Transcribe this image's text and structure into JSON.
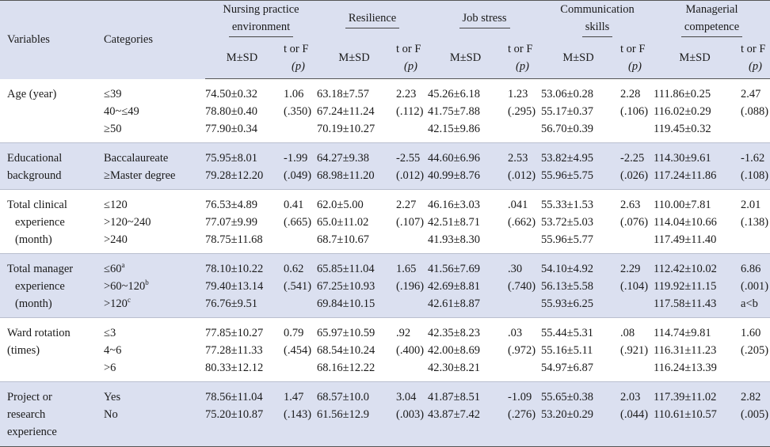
{
  "header": {
    "variables": "Variables",
    "categories": "Categories",
    "groups": [
      {
        "line1": "Nursing practice",
        "line2": "environment"
      },
      {
        "line1": "Resilience",
        "line2": ""
      },
      {
        "line1": "Job stress",
        "line2": ""
      },
      {
        "line1": "Communication",
        "line2": "skills"
      },
      {
        "line1": "Managerial",
        "line2": "competence"
      }
    ],
    "ms_label": "M±SD",
    "stat_label_1": "t or F",
    "stat_label_2": "(p)"
  },
  "rows": [
    {
      "variable": [
        "Age (year)"
      ],
      "categories": [
        "≤39",
        "40~≤49",
        "≥50"
      ],
      "measures": [
        {
          "ms": [
            "74.50±0.32",
            "78.80±0.40",
            "77.90±0.34"
          ],
          "stat": [
            "1.06",
            "(.350)"
          ]
        },
        {
          "ms": [
            "63.18±7.57",
            "67.24±11.24",
            "70.19±10.27"
          ],
          "stat": [
            "2.23",
            "(.112)"
          ]
        },
        {
          "ms": [
            "45.26±6.18",
            "41.75±7.88",
            "42.15±9.86"
          ],
          "stat": [
            "1.23",
            "(.295)"
          ]
        },
        {
          "ms": [
            "53.06±0.28",
            "55.17±0.37",
            "56.70±0.39"
          ],
          "stat": [
            "2.28",
            "(.106)"
          ]
        },
        {
          "ms": [
            "111.86±0.25",
            "116.02±0.29",
            "119.45±0.32"
          ],
          "stat": [
            "2.47",
            "(.088)"
          ]
        }
      ]
    },
    {
      "variable": [
        "Educational",
        "background"
      ],
      "categories": [
        "Baccalaureate",
        "≥Master degree"
      ],
      "measures": [
        {
          "ms": [
            "75.95±8.01",
            "79.28±12.20"
          ],
          "stat": [
            "-1.99",
            "(.049)"
          ]
        },
        {
          "ms": [
            "64.27±9.38",
            "68.98±11.20"
          ],
          "stat": [
            "-2.55",
            "(.012)"
          ]
        },
        {
          "ms": [
            "44.60±6.96",
            "40.99±8.76"
          ],
          "stat": [
            "2.53",
            "(.012)"
          ]
        },
        {
          "ms": [
            "53.82±4.95",
            "55.96±5.75"
          ],
          "stat": [
            "-2.25",
            "(.026)"
          ]
        },
        {
          "ms": [
            "114.30±9.61",
            "117.24±11.86"
          ],
          "stat": [
            "-1.62",
            "(.108)"
          ]
        }
      ]
    },
    {
      "variable": [
        "Total clinical",
        "experience",
        "(month)"
      ],
      "categories": [
        "≤120",
        ">120~240",
        ">240"
      ],
      "measures": [
        {
          "ms": [
            "76.53±4.89",
            "77.07±9.99",
            "78.75±11.68"
          ],
          "stat": [
            "0.41",
            "(.665)"
          ]
        },
        {
          "ms": [
            "62.0±5.00",
            "65.0±11.02",
            "68.7±10.67"
          ],
          "stat": [
            "2.27",
            "(.107)"
          ]
        },
        {
          "ms": [
            "46.16±3.03",
            "42.51±8.71",
            "41.93±8.30"
          ],
          "stat": [
            ".041",
            "(.662)"
          ]
        },
        {
          "ms": [
            "55.33±1.53",
            "53.72±5.03",
            "55.96±5.77"
          ],
          "stat": [
            "2.63",
            "(.076)"
          ]
        },
        {
          "ms": [
            "110.00±7.81",
            "114.04±10.66",
            "117.49±11.40"
          ],
          "stat": [
            "2.01",
            "(.138)"
          ]
        }
      ]
    },
    {
      "variable": [
        "Total manager",
        "experience",
        "(month)"
      ],
      "categories": [
        "≤60",
        ">60~120",
        ">120"
      ],
      "category_sups": [
        "a",
        "b",
        "c"
      ],
      "measures": [
        {
          "ms": [
            "78.10±10.22",
            "79.40±13.14",
            "76.76±9.51"
          ],
          "stat": [
            "0.62",
            "(.541)"
          ]
        },
        {
          "ms": [
            "65.85±11.04",
            "67.25±10.93",
            "69.84±10.15"
          ],
          "stat": [
            "1.65",
            "(.196)"
          ]
        },
        {
          "ms": [
            "41.56±7.69",
            "42.69±8.81",
            "42.61±8.87"
          ],
          "stat": [
            ".30",
            "(.740)"
          ]
        },
        {
          "ms": [
            "54.10±4.92",
            "56.13±5.58",
            "55.93±6.25"
          ],
          "stat": [
            "2.29",
            "(.104)"
          ]
        },
        {
          "ms": [
            "112.42±10.02",
            "119.92±11.15",
            "117.58±11.43"
          ],
          "stat": [
            "6.86",
            "(.001)",
            "a<b"
          ]
        }
      ]
    },
    {
      "variable": [
        "Ward rotation",
        "(times)"
      ],
      "categories": [
        "≤3",
        "4~6",
        ">6"
      ],
      "measures": [
        {
          "ms": [
            "77.85±10.27",
            "77.28±11.33",
            "80.33±12.12"
          ],
          "stat": [
            "0.79",
            "(.454)"
          ]
        },
        {
          "ms": [
            "65.97±10.59",
            "68.54±10.24",
            "68.16±12.22"
          ],
          "stat": [
            ".92",
            "(.400)"
          ]
        },
        {
          "ms": [
            "42.35±8.23",
            "42.00±8.69",
            "42.30±8.21"
          ],
          "stat": [
            ".03",
            "(.972)"
          ]
        },
        {
          "ms": [
            "55.44±5.31",
            "55.16±5.11",
            "54.97±6.87"
          ],
          "stat": [
            ".08",
            "(.921)"
          ]
        },
        {
          "ms": [
            "114.74±9.81",
            "116.31±11.23",
            "116.24±13.39"
          ],
          "stat": [
            "1.60",
            "(.205)"
          ]
        }
      ]
    },
    {
      "variable": [
        "Project or",
        "research",
        "experience"
      ],
      "categories": [
        "Yes",
        "No"
      ],
      "measures": [
        {
          "ms": [
            "78.56±11.04",
            "75.20±10.87"
          ],
          "stat": [
            "1.47",
            "(.143)"
          ]
        },
        {
          "ms": [
            "68.57±10.0",
            "61.56±12.9"
          ],
          "stat": [
            "3.04",
            "(.003)"
          ]
        },
        {
          "ms": [
            "41.87±8.51",
            "43.87±7.42"
          ],
          "stat": [
            "-1.09",
            "(.276)"
          ]
        },
        {
          "ms": [
            "55.65±0.38",
            "53.20±0.29"
          ],
          "stat": [
            "2.03",
            "(.044)"
          ]
        },
        {
          "ms": [
            "117.39±11.02",
            "110.61±10.57"
          ],
          "stat": [
            "2.82",
            "(.005)"
          ]
        }
      ]
    }
  ]
}
